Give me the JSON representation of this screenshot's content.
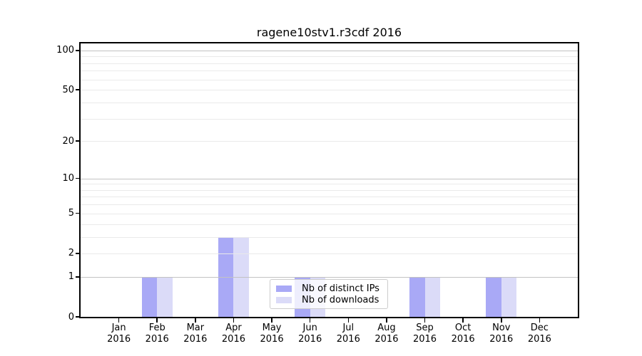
{
  "chart_data": {
    "type": "bar",
    "title": "ragene10stv1.r3cdf 2016",
    "categories": [
      "Jan",
      "Feb",
      "Mar",
      "Apr",
      "May",
      "Jun",
      "Jul",
      "Aug",
      "Sep",
      "Oct",
      "Nov",
      "Dec"
    ],
    "category_year": "2016",
    "series": [
      {
        "name": "Nb of distinct IPs",
        "color": "#a9a9f6",
        "values": [
          0,
          1,
          0,
          3,
          0,
          1,
          0,
          0,
          1,
          0,
          1,
          0
        ]
      },
      {
        "name": "Nb of downloads",
        "color": "#dbdbf8",
        "values": [
          0,
          1,
          0,
          3,
          0,
          1,
          0,
          0,
          1,
          0,
          1,
          0
        ]
      }
    ],
    "yscale": "log1p",
    "ylim": [
      0,
      113
    ],
    "yticks": [
      0,
      1,
      2,
      5,
      10,
      20,
      50,
      100
    ],
    "major_gridlines": [
      1,
      10,
      100
    ],
    "minor_gridlines": [
      2,
      3,
      4,
      5,
      6,
      7,
      8,
      9,
      20,
      30,
      40,
      50,
      60,
      70,
      80,
      90
    ],
    "legend": {
      "position": "lower center"
    },
    "colors": {
      "major_grid": "#c2c2c2",
      "minor_grid": "#eaeaea",
      "axis": "#000000"
    }
  }
}
